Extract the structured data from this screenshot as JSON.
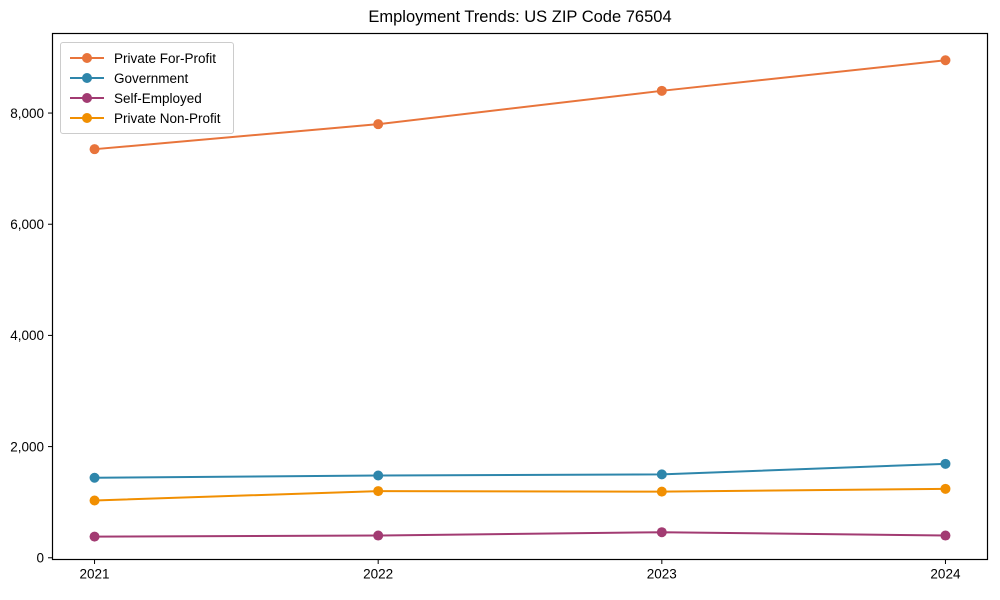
{
  "chart_data": {
    "type": "line",
    "title": "Employment Trends: US ZIP Code 76504",
    "xlabel": "",
    "ylabel": "",
    "x_tick_labels": [
      "2021",
      "2022",
      "2023",
      "2024"
    ],
    "y_ticks": [
      0,
      2000,
      4000,
      6000,
      8000
    ],
    "y_tick_labels": [
      "0",
      "2,000",
      "4,000",
      "6,000",
      "8,000"
    ],
    "ylim": [
      -40,
      9440
    ],
    "grid": false,
    "legend_position": "upper-left",
    "marker": "circle",
    "frame_color": "#000000",
    "series": [
      {
        "name": "Private For-Profit",
        "color": "#E8743B",
        "values": [
          7350,
          7800,
          8400,
          8950
        ]
      },
      {
        "name": "Government",
        "color": "#2E86AB",
        "values": [
          1440,
          1480,
          1500,
          1690
        ]
      },
      {
        "name": "Self-Employed",
        "color": "#A23B72",
        "values": [
          380,
          400,
          460,
          400
        ]
      },
      {
        "name": "Private Non-Profit",
        "color": "#F18F01",
        "values": [
          1030,
          1200,
          1190,
          1240
        ]
      }
    ]
  }
}
